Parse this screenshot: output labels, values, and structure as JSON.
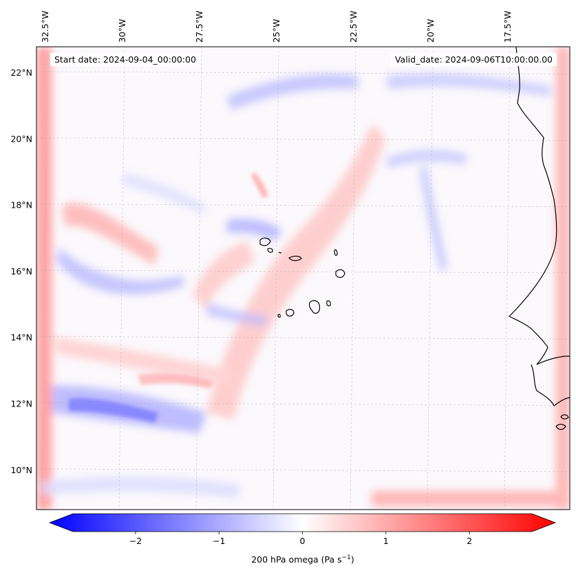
{
  "map": {
    "start_date": "Start date: 2024-09-04_00:00:00",
    "valid_date": "Valid_date: 2024-09-06T10:00:00.00",
    "lon_labels": [
      "32.5°W",
      "30°W",
      "27.5°W",
      "25°W",
      "22.5°W",
      "20°W",
      "17.5°W"
    ],
    "lat_labels": [
      "22°N",
      "20°N",
      "18°N",
      "16°N",
      "14°N",
      "12°N",
      "10°N"
    ],
    "lon_values": [
      -32.5,
      -30,
      -27.5,
      -25,
      -22.5,
      -20,
      -17.5
    ],
    "lat_values": [
      22,
      20,
      18,
      16,
      14,
      12,
      10
    ],
    "extent": {
      "lon_min": -32.6,
      "lon_max": -15.5,
      "lat_min": 8.9,
      "lat_max": 22.8
    },
    "field": "200 hPa omega",
    "gridlines": true
  },
  "colorbar": {
    "label_prefix": "200 hPa omega (Pa s",
    "label_exp": "−1",
    "label_suffix": ")",
    "ticks": [
      "−2",
      "−1",
      "0",
      "1",
      "2"
    ],
    "tick_values": [
      -2,
      -1,
      0,
      1,
      2
    ],
    "range": [
      -2.75,
      2.75
    ],
    "cmap": "bwr",
    "extend": "both"
  },
  "colors": {
    "negative": "#0000ff",
    "neutral": "#ffffff",
    "positive": "#ff0000",
    "coastline": "#000000",
    "gridline": "#b0b0b0"
  }
}
